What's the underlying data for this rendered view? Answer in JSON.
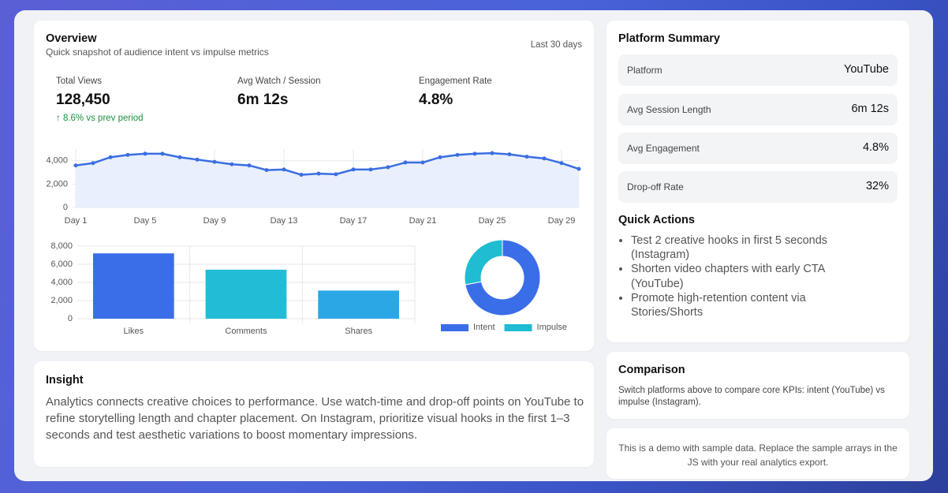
{
  "overview": {
    "title": "Overview",
    "subtitle": "Quick snapshot of audience intent vs impulse metrics",
    "period": "Last 30 days",
    "kpis": [
      {
        "label": "Total Views",
        "value": "128,450",
        "delta": "↑ 8.6% vs prev period"
      },
      {
        "label": "Avg Watch / Session",
        "value": "6m 12s"
      },
      {
        "label": "Engagement Rate",
        "value": "4.8%"
      }
    ]
  },
  "chart_data": [
    {
      "type": "line",
      "categories": [
        "Day 1",
        null,
        null,
        null,
        "Day 5",
        null,
        null,
        null,
        "Day 9",
        null,
        null,
        null,
        "Day 13",
        null,
        null,
        null,
        "Day 17",
        null,
        null,
        null,
        "Day 21",
        null,
        null,
        null,
        "Day 25",
        null,
        null,
        null,
        "Day 29",
        null
      ],
      "values": [
        3600,
        3800,
        4300,
        4500,
        4600,
        4600,
        4300,
        4100,
        3900,
        3700,
        3600,
        3200,
        3250,
        2800,
        2900,
        2850,
        3250,
        3250,
        3450,
        3850,
        3850,
        4300,
        4500,
        4600,
        4650,
        4550,
        4350,
        4200,
        3800,
        3300
      ],
      "color": "#3a6ee2",
      "fill": "#e9effc",
      "ylim": [
        0,
        5000
      ],
      "yticks": [
        0,
        {
          "value": 2000,
          "label": "2,000"
        },
        {
          "value": 4000,
          "label": "4,000"
        }
      ],
      "grid": true
    },
    {
      "type": "bar",
      "categories": [
        "Likes",
        "Comments",
        "Shares"
      ],
      "values": [
        7200,
        5400,
        3100
      ],
      "colors": [
        "#3a6ee8",
        "#22bcd6",
        "#2ba7e6"
      ],
      "ylim": [
        0,
        8000
      ],
      "yticks": [
        0,
        {
          "value": 2000,
          "label": "2,000"
        },
        {
          "value": 4000,
          "label": "4,000"
        },
        {
          "value": 6000,
          "label": "6,000"
        },
        {
          "value": 8000,
          "label": "8,000"
        }
      ],
      "grid": true
    },
    {
      "type": "doughnut",
      "categories": [
        "Intent",
        "Impulse"
      ],
      "values": [
        72,
        28
      ],
      "colors": [
        "#3a6ee8",
        "#1fbcd2"
      ],
      "legend": "bottom"
    }
  ],
  "insight": {
    "title": "Insight",
    "text": "Analytics connects creative choices to performance. Use watch-time and drop-off points on YouTube to refine storytelling length and chapter placement. On Instagram, prioritize visual hooks in the first 1–3 seconds and test aesthetic variations to boost momentary impressions."
  },
  "platform_summary": {
    "title": "Platform Summary",
    "rows": [
      {
        "label": "Platform",
        "value": "YouTube"
      },
      {
        "label": "Avg Session Length",
        "value": "6m 12s"
      },
      {
        "label": "Avg Engagement",
        "value": "4.8%"
      },
      {
        "label": "Drop-off Rate",
        "value": "32%"
      }
    ]
  },
  "quick_actions": {
    "title": "Quick Actions",
    "items": [
      "Test 2 creative hooks in first 5 seconds (Instagram)",
      "Shorten video chapters with early CTA (YouTube)",
      "Promote high-retention content via Stories/Shorts"
    ]
  },
  "comparison": {
    "title": "Comparison",
    "text": "Switch platforms above to compare core KPIs: intent (YouTube) vs impulse (Instagram)."
  },
  "note": "This is a demo with sample data. Replace the sample arrays in the JS with your real analytics export."
}
